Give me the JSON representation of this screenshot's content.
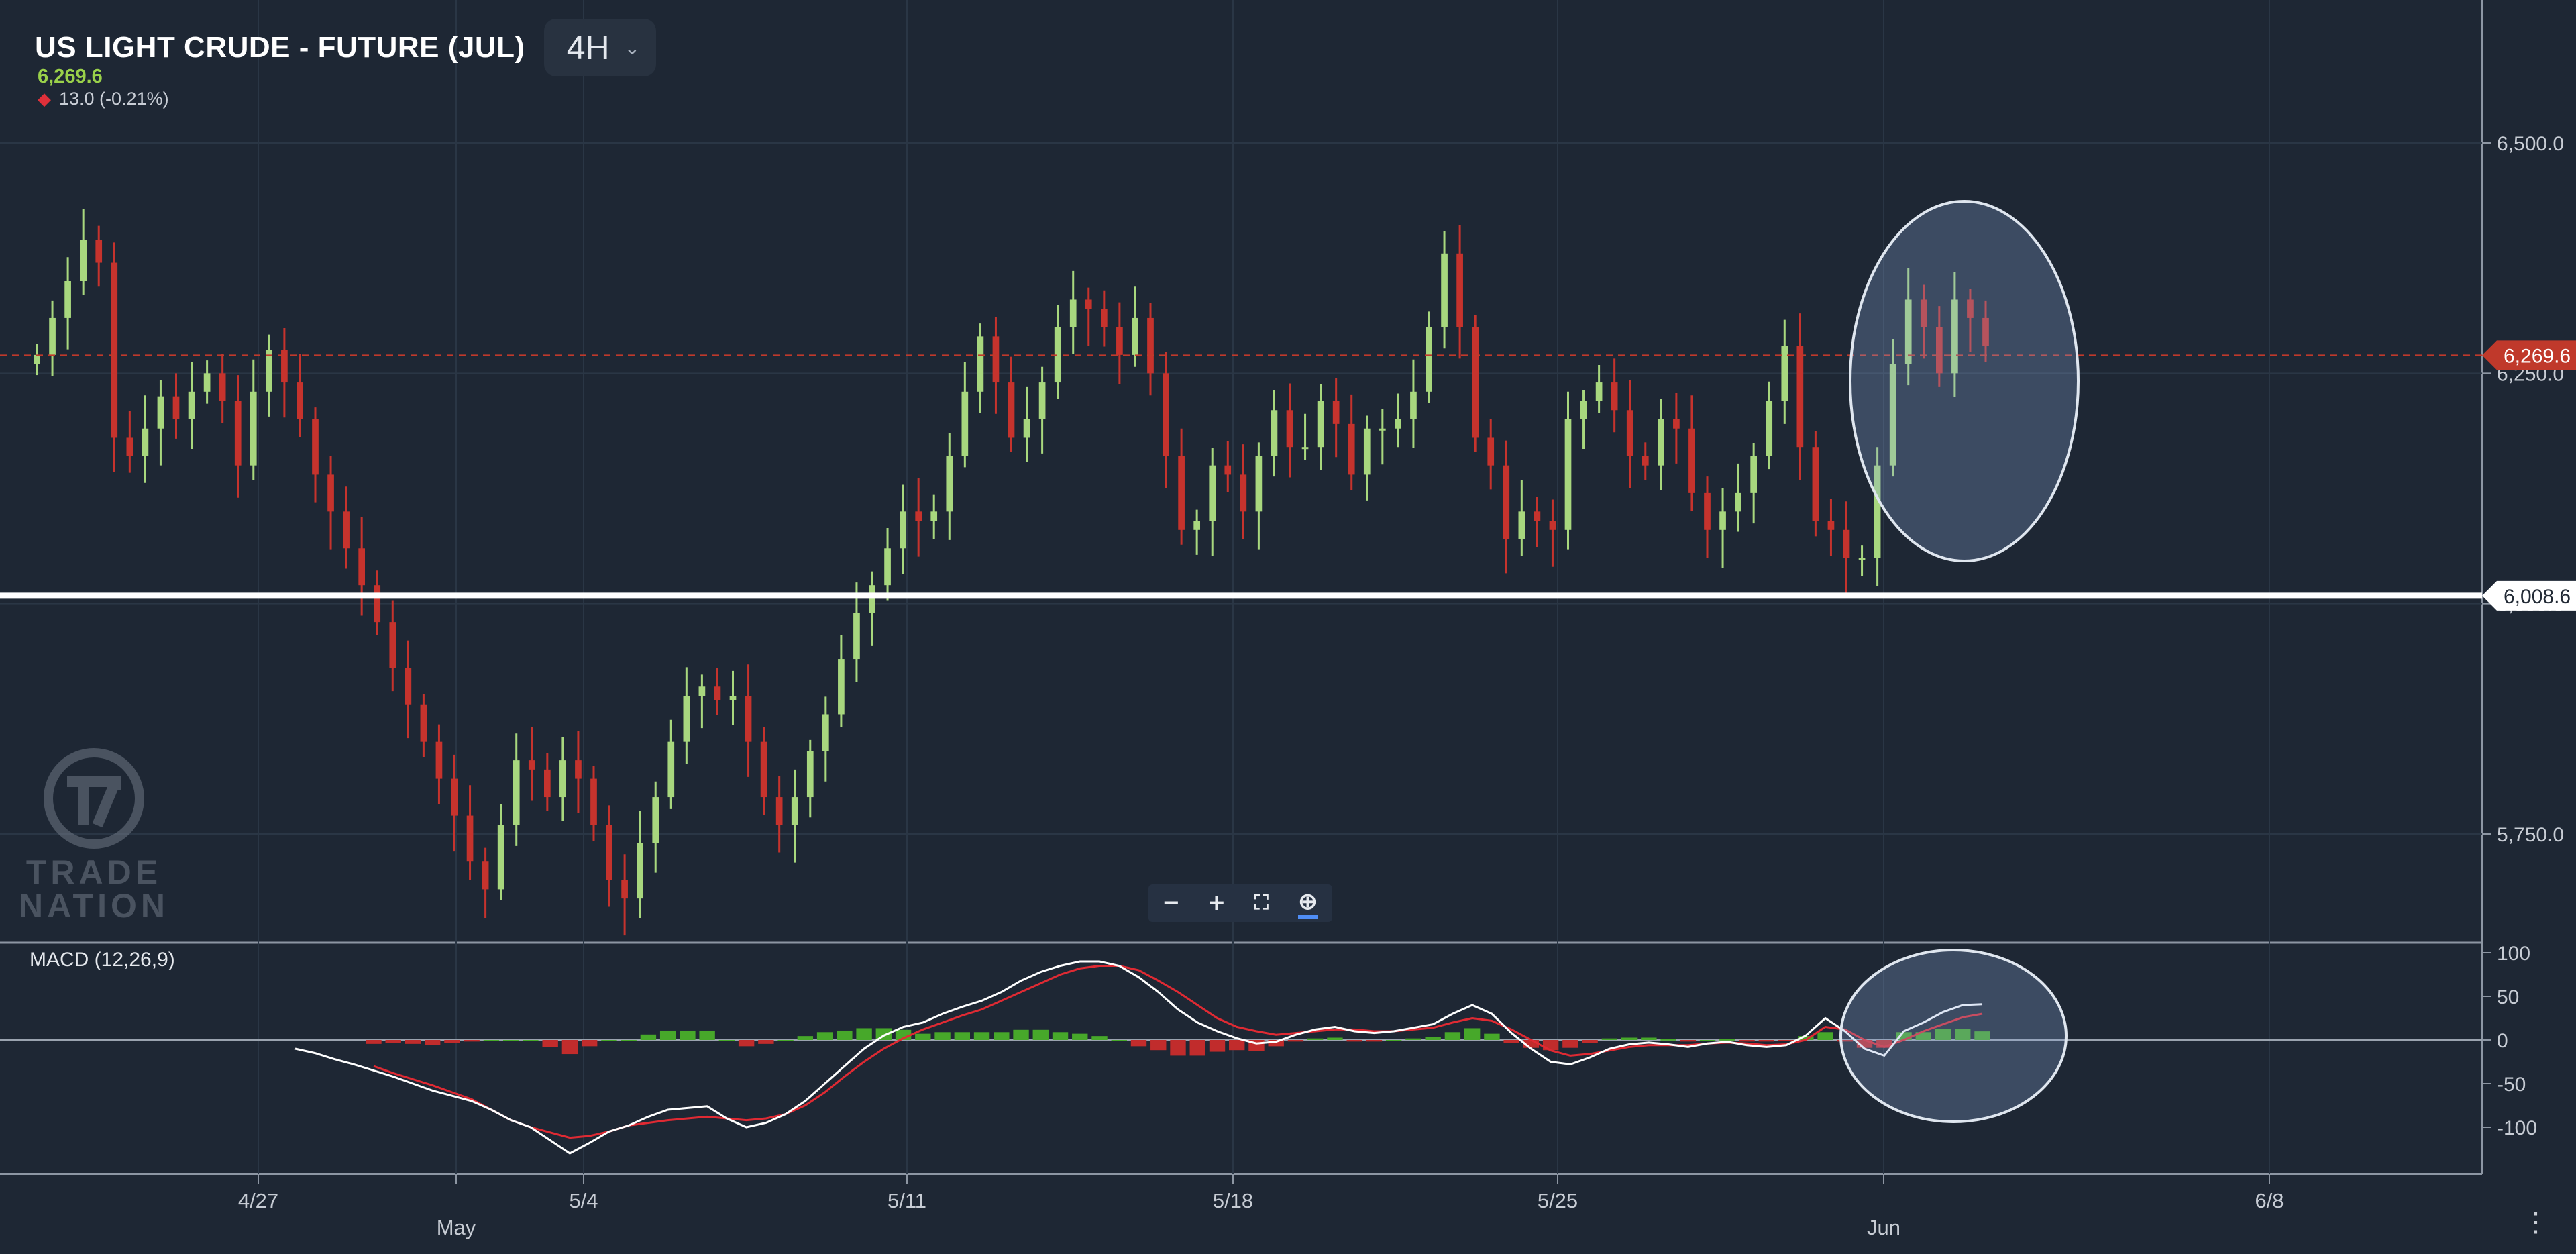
{
  "header": {
    "instrument": "US LIGHT CRUDE - FUTURE (JUL)",
    "timeframe": "4H",
    "last_price": "6,269.6",
    "change": "13.0 (-0.21%)"
  },
  "toolbar": {
    "zoom_out": "−",
    "zoom_in": "+",
    "fit": "⛶",
    "zoom_reset": "⊕"
  },
  "branding": {
    "line1": "TRADE",
    "line2": "NATION"
  },
  "macd_label": "MACD (12,26,9)",
  "colors": {
    "background": "#1e2734",
    "up_candle": "#a8d77e",
    "down_candle": "#c6332d",
    "macd_line": "#ffffff",
    "signal_line": "#e02a33",
    "hist_pos": "#47a82a",
    "hist_neg": "#c12c2c",
    "support_line": "#ffffff",
    "price_line": "#c0392b"
  },
  "chart_data": [
    {
      "type": "candlestick",
      "title": "US LIGHT CRUDE - FUTURE (JUL)",
      "timeframe": "4H",
      "xlabel": "",
      "ylabel": "",
      "x_ticks": [
        "4/27",
        "May",
        "5/4",
        "5/11",
        "5/18",
        "5/25",
        "Jun",
        "6/8"
      ],
      "y_ticks": [
        5750,
        6000,
        6250,
        6500
      ],
      "y_tick_labels": [
        "5,750.0",
        "6,000.0",
        "6,250.0",
        "6,500.0"
      ],
      "ylim": [
        5630,
        6720
      ],
      "levels": [
        {
          "label": "6,269.6",
          "value": 6269.6,
          "style": "dashed",
          "color": "#c0392b"
        },
        {
          "label": "6,008.6",
          "value": 6008.6,
          "style": "solid",
          "color": "#ffffff"
        }
      ],
      "close_prices": [
        6270,
        6310,
        6350,
        6395,
        6370,
        6180,
        6160,
        6190,
        6225,
        6200,
        6230,
        6250,
        6220,
        6150,
        6230,
        6275,
        6240,
        6200,
        6140,
        6100,
        6060,
        6020,
        5980,
        5930,
        5890,
        5850,
        5810,
        5770,
        5720,
        5690,
        5760,
        5830,
        5820,
        5790,
        5830,
        5810,
        5760,
        5700,
        5680,
        5740,
        5790,
        5850,
        5900,
        5910,
        5895,
        5900,
        5850,
        5790,
        5760,
        5790,
        5840,
        5880,
        5940,
        5990,
        6020,
        6060,
        6100,
        6090,
        6100,
        6160,
        6230,
        6290,
        6240,
        6180,
        6200,
        6240,
        6300,
        6330,
        6320,
        6300,
        6270,
        6310,
        6250,
        6160,
        6080,
        6090,
        6150,
        6140,
        6100,
        6160,
        6210,
        6170,
        6170,
        6220,
        6195,
        6140,
        6190,
        6190,
        6200,
        6230,
        6300,
        6380,
        6300,
        6180,
        6150,
        6070,
        6100,
        6090,
        6080,
        6200,
        6220,
        6240,
        6210,
        6160,
        6150,
        6200,
        6190,
        6120,
        6080,
        6100,
        6120,
        6160,
        6220,
        6280,
        6170,
        6090,
        6080,
        6050,
        6050,
        6150,
        6260,
        6330,
        6300,
        6250,
        6330,
        6310,
        6280
      ],
      "annotations": [
        {
          "shape": "ellipse",
          "note": "recent price action highlighted"
        }
      ]
    },
    {
      "type": "line+bar",
      "title": "MACD (12,26,9)",
      "y_ticks": [
        100,
        50,
        0,
        -50,
        -100
      ],
      "ylim": [
        -150,
        100
      ],
      "series": [
        {
          "name": "",
          "color": "#ffffff",
          "values": [
            -10,
            -15,
            -22,
            -28,
            -35,
            -42,
            -50,
            -58,
            -64,
            -70,
            -80,
            -92,
            -100,
            -115,
            -130,
            -118,
            -105,
            -98,
            -88,
            -80,
            -78,
            -76,
            -90,
            -100,
            -95,
            -85,
            -70,
            -50,
            -30,
            -10,
            5,
            15,
            20,
            30,
            38,
            45,
            55,
            68,
            78,
            85,
            90,
            90,
            85,
            72,
            55,
            35,
            20,
            10,
            2,
            -4,
            -2,
            6,
            12,
            15,
            10,
            8,
            10,
            14,
            18,
            30,
            40,
            30,
            8,
            -10,
            -25,
            -28,
            -20,
            -10,
            -5,
            -3,
            -5,
            -8,
            -4,
            -2,
            -6,
            -8,
            -6,
            5,
            25,
            10,
            -10,
            -18,
            10,
            20,
            32,
            40,
            41
          ]
        },
        {
          "name": "",
          "color": "#e02a33",
          "values": [
            null,
            null,
            null,
            null,
            -30,
            -38,
            -45,
            -52,
            -60,
            -68,
            -80,
            -92,
            -100,
            -106,
            -112,
            -110,
            -105,
            -98,
            -95,
            -92,
            -90,
            -88,
            -90,
            -92,
            -90,
            -85,
            -75,
            -60,
            -42,
            -25,
            -10,
            2,
            12,
            20,
            28,
            35,
            45,
            55,
            65,
            75,
            82,
            85,
            85,
            80,
            68,
            55,
            40,
            25,
            15,
            10,
            6,
            8,
            10,
            12,
            12,
            10,
            10,
            12,
            14,
            20,
            25,
            22,
            12,
            0,
            -12,
            -18,
            -16,
            -12,
            -8,
            -6,
            -6,
            -6,
            -4,
            -3,
            -4,
            -6,
            -5,
            0,
            15,
            12,
            0,
            -8,
            0,
            10,
            18,
            26,
            30
          ]
        }
      ]
    }
  ]
}
